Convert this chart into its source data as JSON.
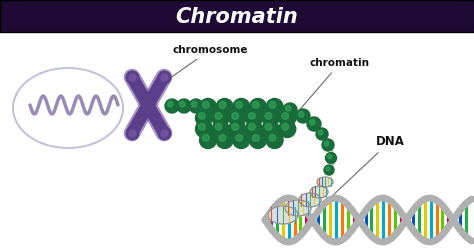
{
  "title": "Chromatin",
  "title_bg_color": "#1e0a35",
  "title_text_color": "#ffffff",
  "bg_color": "#ffffff",
  "label_chromosome": "chromosome",
  "label_chromatin": "chromatin",
  "label_dna": "DNA",
  "label_color": "#111111",
  "chromosome_color": "#5b3f8a",
  "chromosome_light": "#8060aa",
  "chromatin_dark": "#1a6b3a",
  "chromatin_medium": "#2a9a50",
  "chromatin_light": "#3ab865",
  "dna_colors": [
    "#e63300",
    "#0055bb",
    "#22aa44",
    "#ddcc00",
    "#00aacc",
    "#ff7700",
    "#55cc00",
    "#cc0044"
  ],
  "dna_helix_color": "#bbbbbb",
  "annotation_line_color": "#777777",
  "loop_color": "#aaaacc",
  "coil_color": "#9988bb",
  "thread_color": "#999999"
}
